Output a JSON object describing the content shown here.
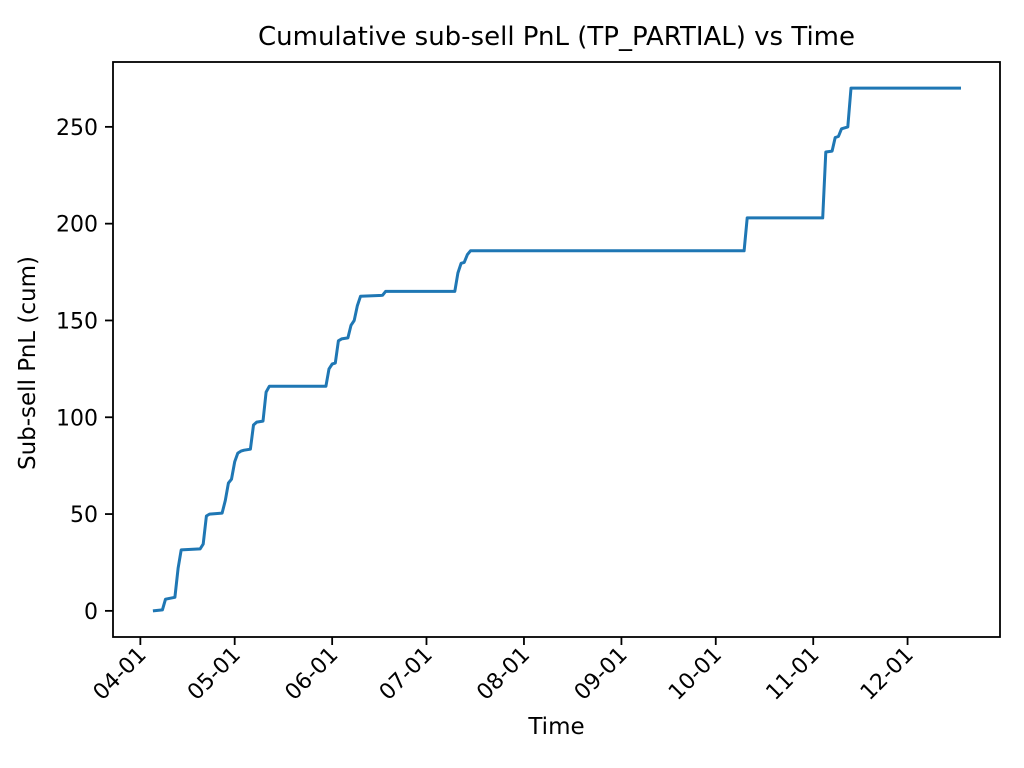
{
  "chart_data": {
    "type": "line",
    "title": "Cumulative sub-sell PnL (TP_PARTIAL) vs Time",
    "xlabel": "Time",
    "ylabel": "Sub-sell PnL (cum)",
    "grid": false,
    "legend": "none",
    "background_color": "#ffffff",
    "axis_color": "#000000",
    "x_tick_labels": [
      "04-01",
      "05-01",
      "06-01",
      "07-01",
      "08-01",
      "09-01",
      "10-01",
      "11-01",
      "12-01"
    ],
    "x_tick_rotation_deg": 45,
    "y_ticks": [
      0,
      50,
      100,
      150,
      200,
      250
    ],
    "ylim": [
      -13.5,
      283.5
    ],
    "xlim_days_from_04_01": [
      -8.7,
      273.4
    ],
    "series": [
      {
        "name": "cumulative-sub-sell-pnl",
        "color": "#1f77b4",
        "line_width": 3,
        "points": [
          [
            "04-05",
            0
          ],
          [
            "04-08",
            0.5
          ],
          [
            "04-09",
            6
          ],
          [
            "04-12",
            7
          ],
          [
            "04-13",
            22
          ],
          [
            "04-14",
            31.5
          ],
          [
            "04-20",
            32
          ],
          [
            "04-21",
            34.5
          ],
          [
            "04-22",
            49
          ],
          [
            "04-23",
            50
          ],
          [
            "04-27",
            50.5
          ],
          [
            "04-28",
            57
          ],
          [
            "04-29",
            66
          ],
          [
            "04-30",
            68
          ],
          [
            "05-01",
            77
          ],
          [
            "05-02",
            81.5
          ],
          [
            "05-03",
            82.5
          ],
          [
            "05-04",
            83
          ],
          [
            "05-06",
            83.5
          ],
          [
            "05-07",
            96
          ],
          [
            "05-08",
            97.5
          ],
          [
            "05-10",
            98
          ],
          [
            "05-11",
            113
          ],
          [
            "05-12",
            116
          ],
          [
            "05-30",
            116
          ],
          [
            "05-31",
            125
          ],
          [
            "06-01",
            127.5
          ],
          [
            "06-02",
            128
          ],
          [
            "06-03",
            139.5
          ],
          [
            "06-04",
            140.5
          ],
          [
            "06-06",
            141
          ],
          [
            "06-07",
            147.5
          ],
          [
            "06-08",
            150
          ],
          [
            "06-09",
            157.5
          ],
          [
            "06-10",
            162.5
          ],
          [
            "06-17",
            163
          ],
          [
            "06-18",
            165
          ],
          [
            "07-10",
            165
          ],
          [
            "07-11",
            174.5
          ],
          [
            "07-12",
            179.5
          ],
          [
            "07-13",
            180
          ],
          [
            "07-14",
            184
          ],
          [
            "07-15",
            186
          ],
          [
            "10-10",
            186
          ],
          [
            "10-11",
            203
          ],
          [
            "11-04",
            203
          ],
          [
            "11-05",
            237
          ],
          [
            "11-07",
            237.5
          ],
          [
            "11-08",
            244.5
          ],
          [
            "11-09",
            245
          ],
          [
            "11-10",
            249
          ],
          [
            "11-12",
            250
          ],
          [
            "11-13",
            270
          ],
          [
            "12-18",
            270
          ]
        ]
      }
    ]
  }
}
